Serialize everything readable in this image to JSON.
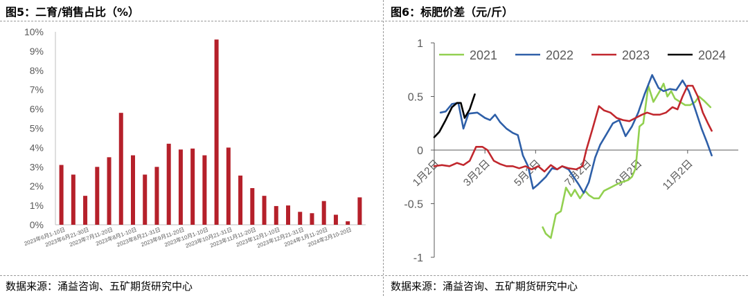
{
  "left": {
    "title": "图5：二育/销售占比（%）",
    "source": "数据来源：涌益咨询、五矿期货研究中心",
    "chart_data": {
      "type": "bar",
      "ylim": [
        0,
        10
      ],
      "yticks": [
        "0%",
        "1%",
        "2%",
        "3%",
        "4%",
        "5%",
        "6%",
        "7%",
        "8%",
        "9%",
        "10%"
      ],
      "categories": [
        "2023年6月1-10日",
        "",
        "2023年6月21-30日",
        "",
        "2023年7月11-20日",
        "",
        "2023年8月1-10日",
        "",
        "2023年8月21-31日",
        "",
        "2023年9月11-20日",
        "",
        "2023年10月1-10日",
        "",
        "2023年10月21-31日",
        "",
        "2023年11月11-20日",
        "",
        "2023年12月1-10日",
        "",
        "2023年12月21-31日",
        "",
        "2024年1月11-20日",
        "",
        "2024年2月10-20日",
        ""
      ],
      "values": [
        3.1,
        2.6,
        1.5,
        3.0,
        3.5,
        5.8,
        3.6,
        2.6,
        3.0,
        4.2,
        3.9,
        3.95,
        3.6,
        9.6,
        4.0,
        2.55,
        1.9,
        1.5,
        0.97,
        1.0,
        0.67,
        0.6,
        1.23,
        0.52,
        0.18,
        1.42
      ],
      "color": "#b5202a"
    }
  },
  "right": {
    "title": "图6：标肥价差（元/斤）",
    "source": "数据来源：涌益咨询、五矿期货研究中心",
    "chart_data": {
      "type": "line",
      "ylim": [
        -1,
        1
      ],
      "yticks": [
        "1",
        "0.5",
        "0",
        "-0.5",
        "-1"
      ],
      "xticks": [
        "1月2日",
        "3月2日",
        "5月2日",
        "7月2日",
        "9月2日",
        "11月2日"
      ],
      "x_domain": [
        0,
        12
      ],
      "series": [
        {
          "name": "2021",
          "color": "#92d050",
          "points": [
            [
              4.28,
              -0.72
            ],
            [
              4.4,
              -0.78
            ],
            [
              4.6,
              -0.82
            ],
            [
              4.8,
              -0.6
            ],
            [
              5,
              -0.57
            ],
            [
              5.2,
              -0.35
            ],
            [
              5.4,
              -0.43
            ],
            [
              5.55,
              -0.37
            ],
            [
              5.75,
              -0.45
            ],
            [
              5.95,
              -0.38
            ],
            [
              6.1,
              -0.42
            ],
            [
              6.3,
              -0.45
            ],
            [
              6.5,
              -0.45
            ],
            [
              6.7,
              -0.38
            ],
            [
              6.95,
              -0.35
            ],
            [
              7.2,
              -0.32
            ],
            [
              7.4,
              -0.3
            ],
            [
              7.65,
              -0.28
            ],
            [
              7.8,
              -0.25
            ],
            [
              7.95,
              -0.17
            ],
            [
              8.1,
              0.22
            ],
            [
              8.25,
              0.25
            ],
            [
              8.45,
              0.6
            ],
            [
              8.65,
              0.45
            ],
            [
              8.9,
              0.55
            ],
            [
              9.05,
              0.62
            ],
            [
              9.2,
              0.5
            ],
            [
              9.35,
              0.55
            ],
            [
              9.5,
              0.48
            ],
            [
              9.7,
              0.45
            ],
            [
              9.9,
              0.42
            ],
            [
              10.1,
              0.42
            ],
            [
              10.3,
              0.45
            ],
            [
              10.45,
              0.5
            ],
            [
              10.65,
              0.46
            ],
            [
              10.9,
              0.4
            ]
          ]
        },
        {
          "name": "2022",
          "color": "#2e5fa8",
          "points": [
            [
              0.25,
              0.35
            ],
            [
              0.45,
              0.36
            ],
            [
              0.7,
              0.43
            ],
            [
              0.95,
              0.44
            ],
            [
              1.15,
              0.2
            ],
            [
              1.35,
              0.34
            ],
            [
              1.7,
              0.35
            ],
            [
              2,
              0.3
            ],
            [
              2.2,
              0.28
            ],
            [
              2.4,
              0.33
            ],
            [
              2.6,
              0.26
            ],
            [
              2.85,
              0.2
            ],
            [
              3.1,
              0.16
            ],
            [
              3.3,
              0.14
            ],
            [
              3.5,
              -0.05
            ],
            [
              3.7,
              -0.15
            ],
            [
              3.9,
              -0.36
            ],
            [
              4.1,
              -0.32
            ],
            [
              4.4,
              -0.25
            ],
            [
              4.65,
              -0.17
            ],
            [
              4.85,
              -0.18
            ],
            [
              5.05,
              -0.15
            ],
            [
              5.3,
              -0.18
            ],
            [
              5.5,
              -0.25
            ],
            [
              5.7,
              -0.32
            ],
            [
              5.9,
              -0.4
            ],
            [
              6.1,
              -0.3
            ],
            [
              6.35,
              -0.07
            ],
            [
              6.55,
              0.05
            ],
            [
              6.8,
              0.15
            ],
            [
              7.05,
              0.25
            ],
            [
              7.3,
              0.28
            ],
            [
              7.55,
              0.13
            ],
            [
              7.8,
              0.22
            ],
            [
              8.05,
              0.35
            ],
            [
              8.3,
              0.52
            ],
            [
              8.6,
              0.7
            ],
            [
              8.85,
              0.58
            ],
            [
              9.05,
              0.55
            ],
            [
              9.3,
              0.57
            ],
            [
              9.55,
              0.56
            ],
            [
              9.8,
              0.65
            ],
            [
              10.05,
              0.55
            ],
            [
              10.3,
              0.38
            ],
            [
              10.55,
              0.2
            ],
            [
              10.75,
              0.08
            ],
            [
              10.95,
              -0.05
            ]
          ]
        },
        {
          "name": "2023",
          "color": "#c1272d",
          "points": [
            [
              0,
              -0.15
            ],
            [
              0.3,
              -0.14
            ],
            [
              0.6,
              -0.15
            ],
            [
              0.9,
              -0.12
            ],
            [
              1.15,
              -0.14
            ],
            [
              1.4,
              -0.1
            ],
            [
              1.65,
              0.03
            ],
            [
              1.9,
              0.03
            ],
            [
              2.1,
              0.0
            ],
            [
              2.35,
              -0.1
            ],
            [
              2.6,
              -0.13
            ],
            [
              2.85,
              -0.15
            ],
            [
              3.1,
              -0.15
            ],
            [
              3.35,
              -0.17
            ],
            [
              3.6,
              -0.15
            ],
            [
              3.85,
              -0.18
            ],
            [
              4.1,
              -0.15
            ],
            [
              4.35,
              -0.2
            ],
            [
              4.6,
              -0.14
            ],
            [
              4.85,
              -0.18
            ],
            [
              5.05,
              -0.15
            ],
            [
              5.3,
              -0.17
            ],
            [
              5.6,
              -0.18
            ],
            [
              5.85,
              -0.15
            ],
            [
              6.0,
              0.0
            ],
            [
              6.25,
              0.2
            ],
            [
              6.5,
              0.41
            ],
            [
              6.7,
              0.37
            ],
            [
              6.95,
              0.35
            ],
            [
              7.2,
              0.3
            ],
            [
              7.45,
              0.28
            ],
            [
              7.7,
              0.27
            ],
            [
              7.95,
              0.3
            ],
            [
              8.2,
              0.33
            ],
            [
              8.4,
              0.35
            ],
            [
              8.65,
              0.33
            ],
            [
              8.9,
              0.33
            ],
            [
              9.15,
              0.35
            ],
            [
              9.4,
              0.4
            ],
            [
              9.6,
              0.38
            ],
            [
              9.8,
              0.5
            ],
            [
              10.0,
              0.6
            ],
            [
              10.2,
              0.6
            ],
            [
              10.4,
              0.5
            ],
            [
              10.6,
              0.35
            ],
            [
              10.8,
              0.25
            ],
            [
              10.95,
              0.18
            ]
          ]
        },
        {
          "name": "2024",
          "color": "#000000",
          "points": [
            [
              0,
              0.12
            ],
            [
              0.2,
              0.17
            ],
            [
              0.45,
              0.28
            ],
            [
              0.7,
              0.4
            ],
            [
              0.9,
              0.44
            ],
            [
              1.05,
              0.44
            ],
            [
              1.2,
              0.3
            ],
            [
              1.4,
              0.38
            ],
            [
              1.6,
              0.52
            ]
          ]
        }
      ]
    }
  }
}
